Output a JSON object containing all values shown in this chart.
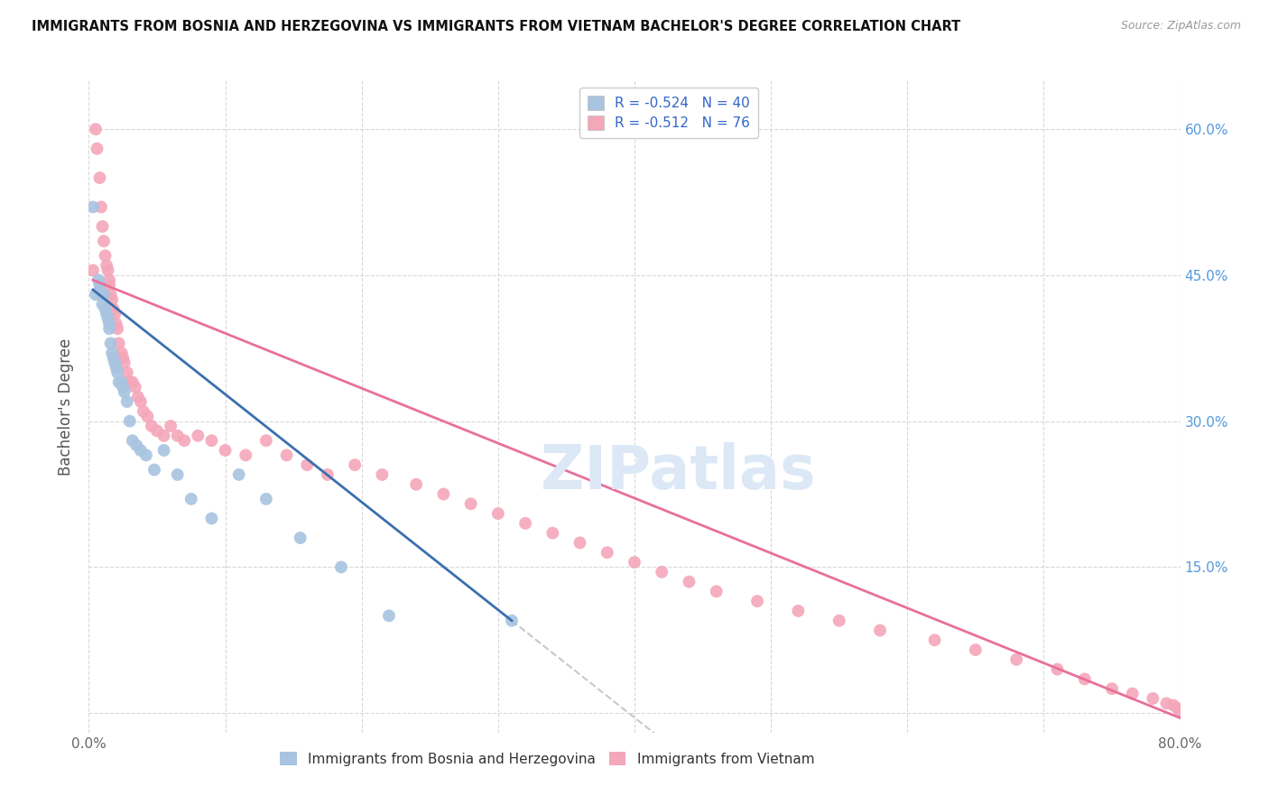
{
  "title": "IMMIGRANTS FROM BOSNIA AND HERZEGOVINA VS IMMIGRANTS FROM VIETNAM BACHELOR'S DEGREE CORRELATION CHART",
  "source": "Source: ZipAtlas.com",
  "ylabel_left": "Bachelor's Degree",
  "xlim": [
    0.0,
    0.8
  ],
  "ylim": [
    -0.02,
    0.65
  ],
  "bosnia_R": -0.524,
  "bosnia_N": 40,
  "vietnam_R": -0.512,
  "vietnam_N": 76,
  "bosnia_color": "#a8c4e0",
  "vietnam_color": "#f4a7b9",
  "bosnia_line_color": "#3b6faf",
  "vietnam_line_color": "#e8709a",
  "trend_line_dashed_color": "#c8c8c8",
  "watermark_text": "ZIPatlas",
  "watermark_color": "#dce8f5",
  "legend_bosnia": "Immigrants from Bosnia and Herzegovina",
  "legend_vietnam": "Immigrants from Vietnam",
  "bosnia_x": [
    0.003,
    0.005,
    0.007,
    0.008,
    0.008,
    0.01,
    0.01,
    0.011,
    0.012,
    0.013,
    0.014,
    0.015,
    0.015,
    0.016,
    0.017,
    0.018,
    0.019,
    0.02,
    0.021,
    0.022,
    0.024,
    0.025,
    0.026,
    0.028,
    0.03,
    0.032,
    0.035,
    0.038,
    0.042,
    0.048,
    0.055,
    0.065,
    0.075,
    0.09,
    0.11,
    0.13,
    0.155,
    0.185,
    0.22,
    0.31
  ],
  "bosnia_y": [
    0.52,
    0.43,
    0.445,
    0.44,
    0.435,
    0.43,
    0.42,
    0.43,
    0.415,
    0.41,
    0.405,
    0.4,
    0.395,
    0.38,
    0.37,
    0.365,
    0.36,
    0.355,
    0.35,
    0.34,
    0.34,
    0.335,
    0.33,
    0.32,
    0.3,
    0.28,
    0.275,
    0.27,
    0.265,
    0.25,
    0.27,
    0.245,
    0.22,
    0.2,
    0.245,
    0.22,
    0.18,
    0.15,
    0.1,
    0.095
  ],
  "vietnam_x": [
    0.003,
    0.005,
    0.006,
    0.008,
    0.009,
    0.01,
    0.011,
    0.012,
    0.013,
    0.014,
    0.015,
    0.015,
    0.016,
    0.017,
    0.018,
    0.019,
    0.02,
    0.021,
    0.022,
    0.024,
    0.025,
    0.026,
    0.028,
    0.03,
    0.032,
    0.034,
    0.036,
    0.038,
    0.04,
    0.043,
    0.046,
    0.05,
    0.055,
    0.06,
    0.065,
    0.07,
    0.08,
    0.09,
    0.1,
    0.115,
    0.13,
    0.145,
    0.16,
    0.175,
    0.195,
    0.215,
    0.24,
    0.26,
    0.28,
    0.3,
    0.32,
    0.34,
    0.36,
    0.38,
    0.4,
    0.42,
    0.44,
    0.46,
    0.49,
    0.52,
    0.55,
    0.58,
    0.62,
    0.65,
    0.68,
    0.71,
    0.73,
    0.75,
    0.765,
    0.78,
    0.79,
    0.795,
    0.798,
    0.8,
    0.802,
    0.805
  ],
  "vietnam_y": [
    0.455,
    0.6,
    0.58,
    0.55,
    0.52,
    0.5,
    0.485,
    0.47,
    0.46,
    0.455,
    0.445,
    0.44,
    0.43,
    0.425,
    0.415,
    0.41,
    0.4,
    0.395,
    0.38,
    0.37,
    0.365,
    0.36,
    0.35,
    0.34,
    0.34,
    0.335,
    0.325,
    0.32,
    0.31,
    0.305,
    0.295,
    0.29,
    0.285,
    0.295,
    0.285,
    0.28,
    0.285,
    0.28,
    0.27,
    0.265,
    0.28,
    0.265,
    0.255,
    0.245,
    0.255,
    0.245,
    0.235,
    0.225,
    0.215,
    0.205,
    0.195,
    0.185,
    0.175,
    0.165,
    0.155,
    0.145,
    0.135,
    0.125,
    0.115,
    0.105,
    0.095,
    0.085,
    0.075,
    0.065,
    0.055,
    0.045,
    0.035,
    0.025,
    0.02,
    0.015,
    0.01,
    0.008,
    0.005,
    0.002,
    0.0,
    -0.003
  ]
}
